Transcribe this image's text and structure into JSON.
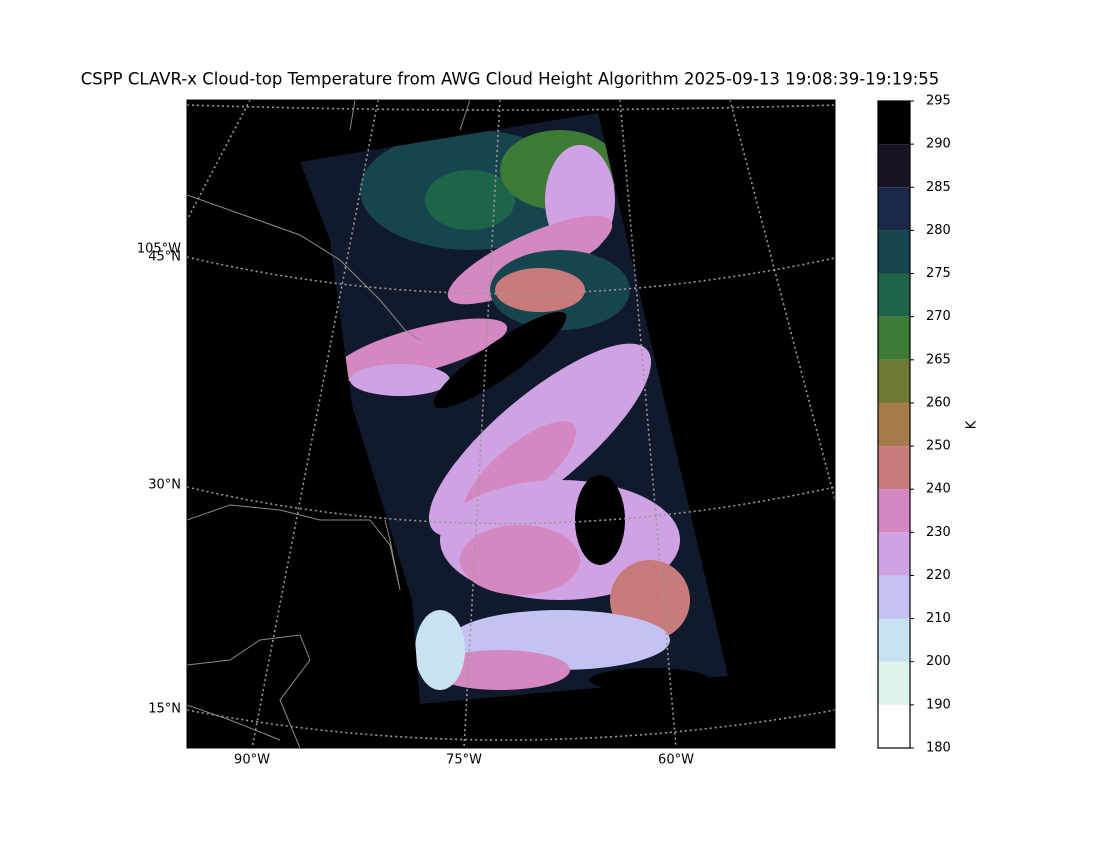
{
  "title": "CSPP CLAVR-x Cloud-top Temperature from AWG Cloud Height Algorithm 2025-09-13 19:08:39-19:19:55",
  "lon_labels": [
    "90°W",
    "75°W",
    "60°W"
  ],
  "lat_labels": [
    "105°W",
    "45°N",
    "30°N",
    "15°N"
  ],
  "colorbar": {
    "label": "K",
    "ticks": [
      180,
      190,
      200,
      210,
      220,
      230,
      240,
      250,
      260,
      265,
      270,
      275,
      280,
      285,
      290,
      295
    ],
    "colors": [
      "#ffffff",
      "#def3ee",
      "#c8e2f2",
      "#c4c2f2",
      "#cfa3e3",
      "#d487c0",
      "#c97a7a",
      "#a67a4c",
      "#6e7a34",
      "#3c7a36",
      "#1e6448",
      "#17454f",
      "#1c2848",
      "#1c1226",
      "#000000"
    ]
  }
}
